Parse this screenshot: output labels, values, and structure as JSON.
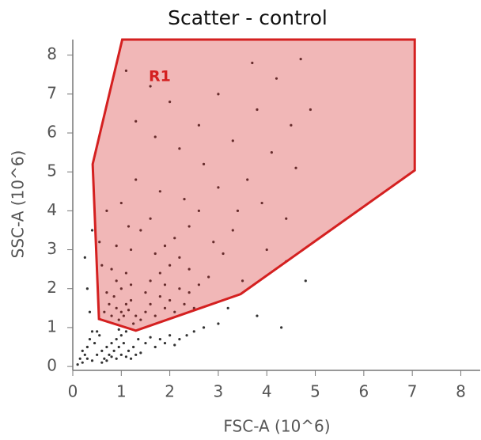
{
  "chart_data": {
    "type": "scatter",
    "title": "Scatter - control",
    "xlabel": "FSC-A (10^6)",
    "ylabel": "SSC-A (10^6)",
    "xlim": [
      0,
      8.4
    ],
    "ylim": [
      -0.1,
      8.4
    ],
    "xticks": [
      0,
      1,
      2,
      3,
      4,
      5,
      6,
      7,
      8
    ],
    "yticks": [
      0,
      1,
      2,
      3,
      4,
      5,
      6,
      7,
      8
    ],
    "color": "#333333",
    "x": [
      0.1,
      0.2,
      0.3,
      0.4,
      0.5,
      0.6,
      0.7,
      0.8,
      0.9,
      1.0,
      0.3,
      0.45,
      0.55,
      0.65,
      0.75,
      0.85,
      0.95,
      1.05,
      1.15,
      1.25,
      1.35,
      1.5,
      1.6,
      1.7,
      1.8,
      1.9,
      2.0,
      2.1,
      2.2,
      2.35,
      0.25,
      0.35,
      0.5,
      0.6,
      0.7,
      0.8,
      0.9,
      1.0,
      1.1,
      1.2,
      1.3,
      1.4,
      0.4,
      0.2,
      0.15,
      0.95,
      1.1,
      2.5,
      2.7,
      3.0,
      0.35,
      0.3,
      0.25,
      0.4,
      0.8,
      0.9,
      1.0,
      1.1,
      0.85,
      0.95,
      1.05,
      1.15,
      1.2,
      0.75,
      0.7,
      1.0,
      0.9,
      1.1,
      0.65,
      1.3,
      1.25,
      1.4,
      0.8,
      1.2,
      1.5,
      1.6,
      1.7,
      1.8,
      1.9,
      2.0,
      2.1,
      2.2,
      2.3,
      2.4,
      1.6,
      1.8,
      2.0,
      1.7,
      2.2,
      2.5,
      2.6,
      2.8,
      1.5,
      1.9,
      1.2,
      1.4,
      1.6,
      1.0,
      1.3,
      1.8,
      2.1,
      2.4,
      2.6,
      2.9,
      3.1,
      3.3,
      3.0,
      2.7,
      2.2,
      1.7,
      1.3,
      2.0,
      2.6,
      3.3,
      3.6,
      3.9,
      4.1,
      3.8,
      4.5,
      4.6,
      4.9,
      4.2,
      4.7,
      1.1,
      1.6,
      3.0,
      2.4,
      3.5,
      4.0,
      4.4,
      4.8,
      3.2,
      3.8,
      4.3,
      0.6,
      0.55,
      0.7,
      0.9,
      1.15,
      1.9,
      2.3,
      3.4,
      4.4,
      3.7
    ],
    "values": [
      0.05,
      0.1,
      0.2,
      0.15,
      0.3,
      0.4,
      0.5,
      0.6,
      0.7,
      0.8,
      0.5,
      0.6,
      0.8,
      0.2,
      0.3,
      0.4,
      0.5,
      0.6,
      0.4,
      0.5,
      0.7,
      0.6,
      0.75,
      0.5,
      0.7,
      0.6,
      0.8,
      0.55,
      0.7,
      0.8,
      0.3,
      0.7,
      0.9,
      0.1,
      0.15,
      0.25,
      0.2,
      0.3,
      0.25,
      0.2,
      0.3,
      0.35,
      0.9,
      0.4,
      0.2,
      0.95,
      0.9,
      0.9,
      1.0,
      1.1,
      1.4,
      2.0,
      2.8,
      3.5,
      1.3,
      1.5,
      1.4,
      1.6,
      1.8,
      1.2,
      1.3,
      1.45,
      1.7,
      1.6,
      1.9,
      2.0,
      2.2,
      2.4,
      1.4,
      1.3,
      1.1,
      1.2,
      2.5,
      2.1,
      1.4,
      1.6,
      1.3,
      1.8,
      1.5,
      1.7,
      1.4,
      2.0,
      1.6,
      1.9,
      2.2,
      2.4,
      2.6,
      2.9,
      2.8,
      1.5,
      2.1,
      2.3,
      1.9,
      2.1,
      3.0,
      3.5,
      3.8,
      4.2,
      4.8,
      4.5,
      3.3,
      3.6,
      4.0,
      3.2,
      2.9,
      3.5,
      4.6,
      5.2,
      5.6,
      5.9,
      6.3,
      6.8,
      6.2,
      5.8,
      4.8,
      4.2,
      5.5,
      6.6,
      6.2,
      5.1,
      6.6,
      7.4,
      7.9,
      7.6,
      7.2,
      7.0,
      2.5,
      2.2,
      3.0,
      2.7,
      2.2,
      1.5,
      1.3,
      1.0,
      2.6,
      3.2,
      4.0,
      3.1,
      3.6,
      3.1,
      4.3,
      4.0,
      3.8,
      7.8
    ],
    "gate": {
      "label": "R1",
      "color": "#d42020",
      "x": [
        1.02,
        7.05,
        7.05,
        3.46,
        1.3,
        0.54,
        0.41
      ],
      "y": [
        8.4,
        8.4,
        5.04,
        1.86,
        0.92,
        1.22,
        5.2
      ]
    }
  }
}
